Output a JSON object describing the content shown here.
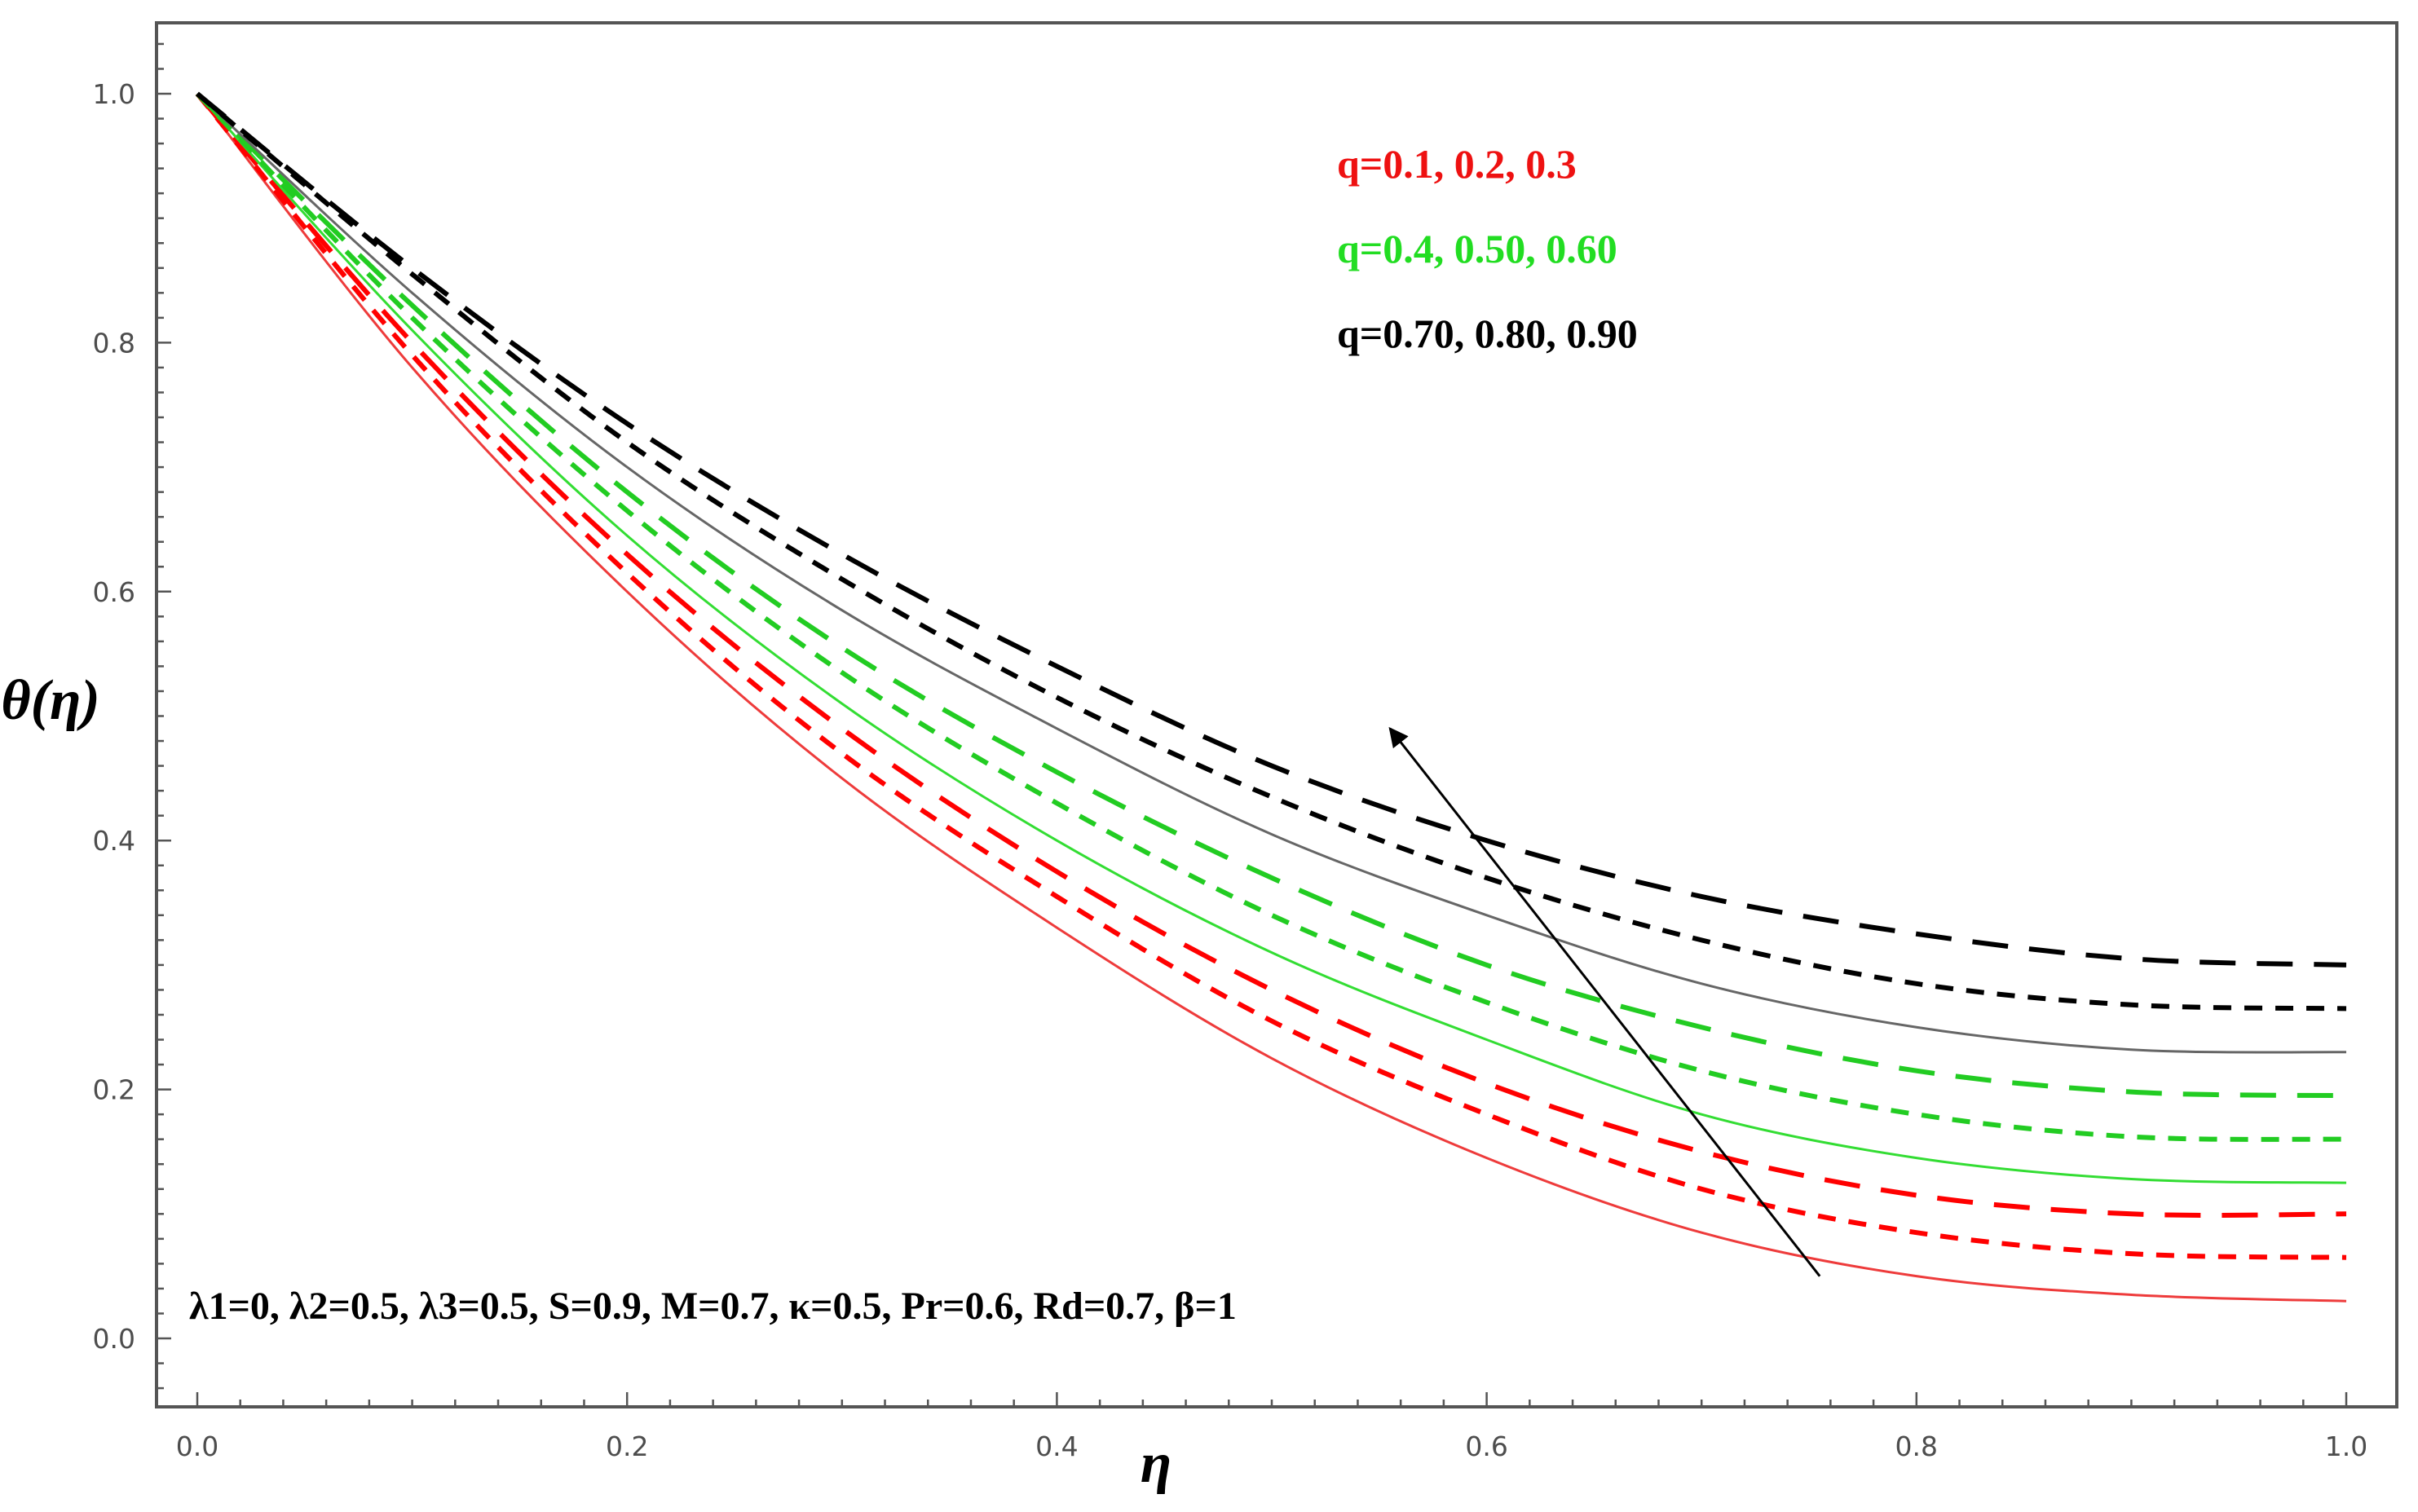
{
  "chart_data": {
    "type": "line",
    "title": "",
    "xlabel": "η",
    "ylabel": "θ(η)",
    "xlim": [
      0,
      1
    ],
    "ylim": [
      -0.05,
      1.05
    ],
    "xticks": [
      "0.0",
      "0.2",
      "0.4",
      "0.6",
      "0.8",
      "1.0"
    ],
    "yticks": [
      "0.0",
      "0.2",
      "0.4",
      "0.6",
      "0.8",
      "1.0"
    ],
    "x": [
      0,
      0.1,
      0.2,
      0.3,
      0.4,
      0.5,
      0.6,
      0.7,
      0.8,
      0.9,
      1.0
    ],
    "series": [
      {
        "name": "q=0.1",
        "color": "#ee3b3b",
        "style": "solid",
        "values": [
          1.0,
          0.78,
          0.6,
          0.45,
          0.33,
          0.225,
          0.145,
          0.085,
          0.05,
          0.035,
          0.03
        ]
      },
      {
        "name": "q=0.2",
        "color": "#ff0000",
        "style": "dotted",
        "values": [
          1.0,
          0.79,
          0.615,
          0.47,
          0.355,
          0.255,
          0.18,
          0.12,
          0.085,
          0.068,
          0.065
        ]
      },
      {
        "name": "q=0.3",
        "color": "#ff0000",
        "style": "dashed",
        "values": [
          1.0,
          0.8,
          0.63,
          0.49,
          0.375,
          0.28,
          0.205,
          0.15,
          0.115,
          0.1,
          0.1
        ]
      },
      {
        "name": "q=0.4",
        "color": "#33dd33",
        "style": "solid",
        "values": [
          1.0,
          0.81,
          0.645,
          0.51,
          0.4,
          0.31,
          0.24,
          0.18,
          0.145,
          0.128,
          0.125
        ]
      },
      {
        "name": "q=0.50",
        "color": "#22cc22",
        "style": "dotted",
        "values": [
          1.0,
          0.82,
          0.665,
          0.535,
          0.43,
          0.34,
          0.27,
          0.215,
          0.18,
          0.162,
          0.16
        ]
      },
      {
        "name": "q=0.60",
        "color": "#22cc22",
        "style": "dashed",
        "values": [
          1.0,
          0.83,
          0.68,
          0.555,
          0.455,
          0.37,
          0.3,
          0.25,
          0.215,
          0.198,
          0.195
        ]
      },
      {
        "name": "q=0.70",
        "color": "#666666",
        "style": "solid",
        "values": [
          1.0,
          0.84,
          0.7,
          0.585,
          0.49,
          0.405,
          0.34,
          0.285,
          0.25,
          0.232,
          0.23
        ]
      },
      {
        "name": "q=0.80",
        "color": "#000000",
        "style": "dotted",
        "values": [
          1.0,
          0.855,
          0.72,
          0.61,
          0.515,
          0.435,
          0.37,
          0.32,
          0.285,
          0.268,
          0.265
        ]
      },
      {
        "name": "q=0.90",
        "color": "#000000",
        "style": "dashed",
        "values": [
          1.0,
          0.86,
          0.735,
          0.63,
          0.54,
          0.46,
          0.4,
          0.355,
          0.325,
          0.305,
          0.3
        ]
      }
    ],
    "legend": [
      {
        "text": "q=0.1, 0.2, 0.3",
        "color": "#ee1111"
      },
      {
        "text": "q=0.4, 0.50, 0.60",
        "color": "#22dd22"
      },
      {
        "text": "q=0.70, 0.80, 0.90",
        "color": "#000000"
      }
    ],
    "legend_position": "top-right",
    "annotation": "λ1=0, λ2=0.5, λ3=0.5, S=0.9,  M=0.7, κ=0.5, Pr=0.6, Rd=0.7, β=1",
    "arrow": {
      "from": [
        0.755,
        0.05
      ],
      "to": [
        0.555,
        0.49
      ],
      "meaning": "increasing q"
    }
  }
}
